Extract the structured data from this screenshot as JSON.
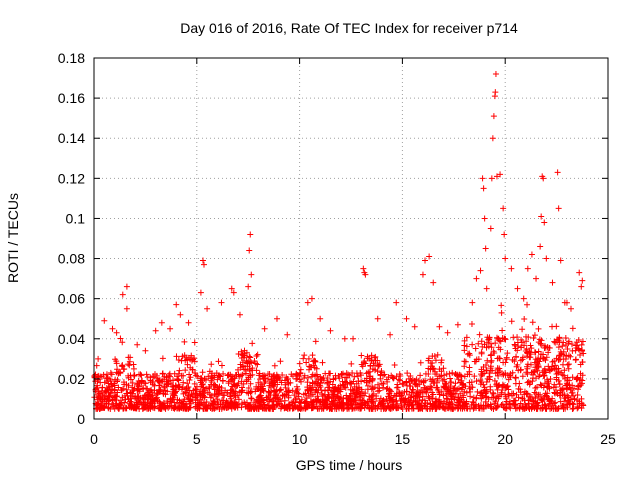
{
  "chart_data": {
    "type": "scatter",
    "title": "Day 016 of 2016, Rate Of TEC Index for receiver p714",
    "xlabel": "GPS time / hours",
    "ylabel": "ROTI / TECUs",
    "xlim": [
      0,
      25
    ],
    "ylim": [
      0,
      0.18
    ],
    "xticks": [
      0,
      5,
      10,
      15,
      20,
      25
    ],
    "xtick_labels": [
      "0",
      "5",
      "10",
      "15",
      "20",
      "25"
    ],
    "yticks": [
      0,
      0.02,
      0.04,
      0.06,
      0.08,
      0.1,
      0.12,
      0.14,
      0.16,
      0.18
    ],
    "ytick_labels": [
      "0",
      "0.02",
      "0.04",
      "0.06",
      "0.08",
      "0.1",
      "0.12",
      "0.14",
      "0.16",
      "0.18"
    ],
    "grid": true,
    "marker": "+",
    "color": "#ff0000",
    "x_data_range": [
      0,
      23.8
    ],
    "dense_band": [
      0.005,
      0.035
    ],
    "outliers": [
      {
        "x": 0.2,
        "y": 0.03
      },
      {
        "x": 0.5,
        "y": 0.049
      },
      {
        "x": 0.9,
        "y": 0.045
      },
      {
        "x": 1.1,
        "y": 0.043
      },
      {
        "x": 1.4,
        "y": 0.062
      },
      {
        "x": 1.6,
        "y": 0.055
      },
      {
        "x": 1.6,
        "y": 0.066
      },
      {
        "x": 2.1,
        "y": 0.037
      },
      {
        "x": 2.5,
        "y": 0.034
      },
      {
        "x": 3.0,
        "y": 0.044
      },
      {
        "x": 3.3,
        "y": 0.048
      },
      {
        "x": 3.7,
        "y": 0.045
      },
      {
        "x": 4.0,
        "y": 0.057
      },
      {
        "x": 4.2,
        "y": 0.052
      },
      {
        "x": 4.6,
        "y": 0.048
      },
      {
        "x": 5.2,
        "y": 0.063
      },
      {
        "x": 5.3,
        "y": 0.079
      },
      {
        "x": 5.35,
        "y": 0.077
      },
      {
        "x": 5.5,
        "y": 0.055
      },
      {
        "x": 6.2,
        "y": 0.058
      },
      {
        "x": 6.7,
        "y": 0.065
      },
      {
        "x": 6.8,
        "y": 0.063
      },
      {
        "x": 7.1,
        "y": 0.052
      },
      {
        "x": 7.5,
        "y": 0.066
      },
      {
        "x": 7.55,
        "y": 0.084
      },
      {
        "x": 7.6,
        "y": 0.092
      },
      {
        "x": 7.65,
        "y": 0.072
      },
      {
        "x": 8.3,
        "y": 0.045
      },
      {
        "x": 8.9,
        "y": 0.05
      },
      {
        "x": 9.4,
        "y": 0.042
      },
      {
        "x": 10.4,
        "y": 0.058
      },
      {
        "x": 10.6,
        "y": 0.06
      },
      {
        "x": 11.0,
        "y": 0.05
      },
      {
        "x": 11.5,
        "y": 0.044
      },
      {
        "x": 12.2,
        "y": 0.04
      },
      {
        "x": 12.6,
        "y": 0.04
      },
      {
        "x": 13.1,
        "y": 0.075
      },
      {
        "x": 13.2,
        "y": 0.072
      },
      {
        "x": 13.15,
        "y": 0.073
      },
      {
        "x": 13.8,
        "y": 0.05
      },
      {
        "x": 14.4,
        "y": 0.042
      },
      {
        "x": 14.7,
        "y": 0.058
      },
      {
        "x": 15.2,
        "y": 0.05
      },
      {
        "x": 15.6,
        "y": 0.046
      },
      {
        "x": 16.0,
        "y": 0.072
      },
      {
        "x": 16.1,
        "y": 0.079
      },
      {
        "x": 16.3,
        "y": 0.081
      },
      {
        "x": 16.5,
        "y": 0.068
      },
      {
        "x": 16.8,
        "y": 0.046
      },
      {
        "x": 17.2,
        "y": 0.043
      },
      {
        "x": 17.7,
        "y": 0.047
      },
      {
        "x": 18.4,
        "y": 0.058
      },
      {
        "x": 18.6,
        "y": 0.07
      },
      {
        "x": 18.8,
        "y": 0.074
      },
      {
        "x": 18.9,
        "y": 0.12
      },
      {
        "x": 18.95,
        "y": 0.115
      },
      {
        "x": 19.0,
        "y": 0.1
      },
      {
        "x": 19.05,
        "y": 0.085
      },
      {
        "x": 19.1,
        "y": 0.065
      },
      {
        "x": 19.3,
        "y": 0.095
      },
      {
        "x": 19.35,
        "y": 0.12
      },
      {
        "x": 19.4,
        "y": 0.14
      },
      {
        "x": 19.45,
        "y": 0.151
      },
      {
        "x": 19.5,
        "y": 0.161
      },
      {
        "x": 19.52,
        "y": 0.163
      },
      {
        "x": 19.55,
        "y": 0.172
      },
      {
        "x": 19.6,
        "y": 0.121
      },
      {
        "x": 19.75,
        "y": 0.122
      },
      {
        "x": 19.9,
        "y": 0.105
      },
      {
        "x": 19.95,
        "y": 0.092
      },
      {
        "x": 20.0,
        "y": 0.08
      },
      {
        "x": 20.3,
        "y": 0.075
      },
      {
        "x": 20.6,
        "y": 0.065
      },
      {
        "x": 20.9,
        "y": 0.06
      },
      {
        "x": 21.1,
        "y": 0.075
      },
      {
        "x": 21.3,
        "y": 0.082
      },
      {
        "x": 21.5,
        "y": 0.07
      },
      {
        "x": 21.7,
        "y": 0.086
      },
      {
        "x": 21.75,
        "y": 0.101
      },
      {
        "x": 21.8,
        "y": 0.121
      },
      {
        "x": 21.85,
        "y": 0.12
      },
      {
        "x": 21.9,
        "y": 0.098
      },
      {
        "x": 22.0,
        "y": 0.08
      },
      {
        "x": 22.3,
        "y": 0.068
      },
      {
        "x": 22.55,
        "y": 0.123
      },
      {
        "x": 22.6,
        "y": 0.105
      },
      {
        "x": 22.7,
        "y": 0.079
      },
      {
        "x": 22.9,
        "y": 0.058
      },
      {
        "x": 23.2,
        "y": 0.055
      },
      {
        "x": 23.6,
        "y": 0.073
      },
      {
        "x": 23.7,
        "y": 0.066
      },
      {
        "x": 23.75,
        "y": 0.069
      }
    ]
  }
}
